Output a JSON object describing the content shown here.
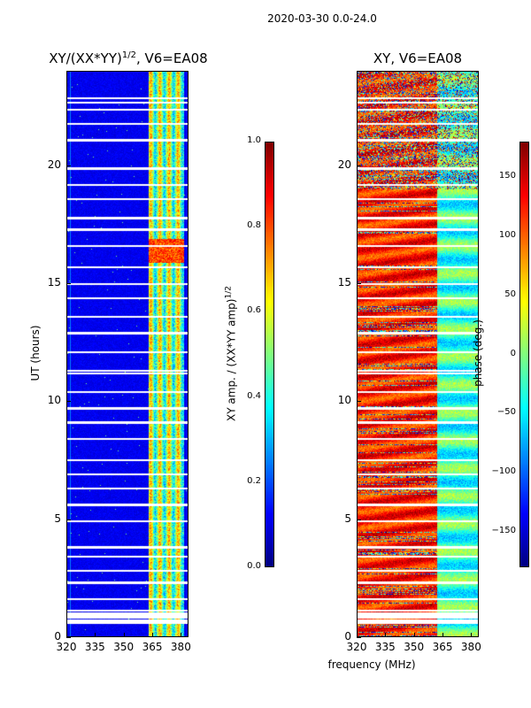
{
  "page_title": "2020-03-30 0.0-24.0",
  "shared_xlabel": "frequency (MHz)",
  "chart_data": [
    {
      "type": "heatmap",
      "title_text": "XY/(XX*YY)",
      "title_sup": "1/2",
      "title_suffix": ", V6=EA08",
      "xlabel": "",
      "ylabel": "UT (hours)",
      "xlim": [
        320,
        384
      ],
      "ylim": [
        0,
        24
      ],
      "xticks": [
        320,
        335,
        350,
        365,
        380
      ],
      "yticks": [
        0,
        5,
        10,
        15,
        20
      ],
      "colorbar": {
        "label_text": "XY amp. / (XX*YY amp)",
        "label_sup": "1/2",
        "range": [
          0.0,
          1.0
        ],
        "ticks": [
          "0.0",
          "0.2",
          "0.4",
          "0.6",
          "0.8",
          "1.0"
        ],
        "colormap": "jet"
      },
      "gap_hours": [
        0.6,
        0.7,
        0.8,
        0.9,
        1.0,
        1.1,
        1.6,
        2.3,
        2.8,
        3.4,
        3.8,
        4.9,
        5.6,
        6.3,
        6.9,
        7.5,
        8.4,
        9.1,
        9.7,
        10.4,
        11.2,
        11.3,
        12.1,
        12.9,
        13.6,
        14.4,
        15.0,
        15.7,
        16.6,
        17.3,
        17.8,
        18.6,
        19.2,
        19.9,
        21.1,
        21.8,
        22.4,
        22.7,
        22.9
      ],
      "bright_band_mhz": [
        363,
        382
      ],
      "peak_hours": [
        16.2,
        16.7
      ],
      "summary": "Low coherence (~0.05-0.15) over 320-362 MHz; elevated values 0.3-0.9 in 363-382 MHz band with vertical stripes; peak ~0.85 near 16-17 UT"
    },
    {
      "type": "heatmap",
      "title_text": "XY",
      "title_sup": "",
      "title_suffix": ", V6=EA08",
      "xlabel": "",
      "ylabel": "",
      "xlim": [
        320,
        384
      ],
      "ylim": [
        0,
        24
      ],
      "xticks": [
        320,
        335,
        350,
        365,
        380
      ],
      "yticks": [
        0,
        5,
        10,
        15,
        20
      ],
      "colorbar": {
        "label_text": "phase (deg.)",
        "label_sup": "",
        "range": [
          -180,
          180
        ],
        "ticks": [
          "−150",
          "−100",
          "−50",
          "0",
          "50",
          "100",
          "150"
        ],
        "tick_values": [
          -150,
          -100,
          -50,
          0,
          50,
          100,
          150
        ],
        "colormap": "jet"
      },
      "gap_hours": [
        0.6,
        0.7,
        0.8,
        0.9,
        1.0,
        1.1,
        1.6,
        2.3,
        2.8,
        3.4,
        3.8,
        4.9,
        5.6,
        6.3,
        6.9,
        7.5,
        8.4,
        9.1,
        9.7,
        10.4,
        11.2,
        11.3,
        12.1,
        12.9,
        13.6,
        14.4,
        15.0,
        15.7,
        16.6,
        17.3,
        17.8,
        18.6,
        19.2,
        19.9,
        21.1,
        21.8,
        22.4,
        22.7,
        22.9
      ],
      "band_split_mhz": 362,
      "summary": "Phase mostly 100-180 deg below 362 MHz, near 0 to -60 deg above 362 MHz; noisy structure in 19-24 UT"
    }
  ]
}
